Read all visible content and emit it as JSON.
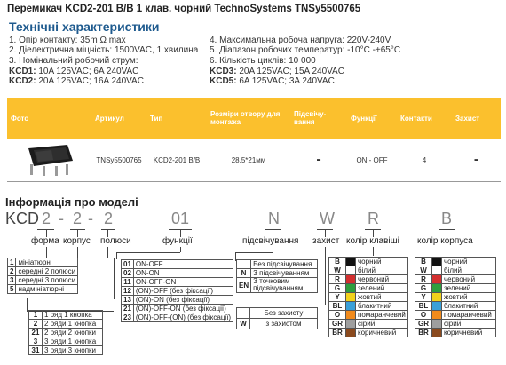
{
  "title": "Перемикач KCD2-201 B/B 1 клав. чорний TechnoSystems TNSy5500765",
  "specs": {
    "heading": "Технічні характеристики",
    "left": [
      "1. Опір контакту: 35m Ω  max",
      "2. Діелектрична міцність:  1500VAC, 1 хвилина",
      "3. Номінальний робочий струм:"
    ],
    "left_kcd": [
      {
        "k": "KCD1:",
        "v": " 10A 125VAC; 6A 240VAC"
      },
      {
        "k": "KCD2:",
        "v": " 20A 125VAC; 16A 240VAC"
      }
    ],
    "right": [
      "4. Максимальна робоча напруга: 220V-240V",
      "5. Діапазон робочих температур: -10°C -+65°C",
      "6. Кількість циклів: 10 000"
    ],
    "right_kcd": [
      {
        "k": "KCD3:",
        "v": " 20A 125VAC; 15A 240VAC"
      },
      {
        "k": "KCD5:",
        "v": " 6A 125VAC; 3A 240VAC"
      }
    ]
  },
  "table": {
    "headers": [
      "Фото",
      "Артикул",
      "Тип",
      "Розміри отвору для монтажа",
      "Підсвічу-вання",
      "Функції",
      "Контакти",
      "Захист"
    ],
    "row": [
      "",
      "TNSy5500765",
      "KCD2-201 B/B",
      "28,5*21мм",
      "-",
      "ON - OFF",
      "4",
      "-"
    ]
  },
  "info": {
    "heading": "Інформація про моделі",
    "code": {
      "prefix": "KCD",
      "form": "2",
      "body": "2",
      "poles": "2",
      "func": "01",
      "light": "N",
      "prot": "W",
      "key": "R",
      "case": "B"
    },
    "labels": {
      "form": "форма",
      "body": "корпус",
      "poles": "полюси",
      "func": "функції",
      "light": "підсвічування",
      "prot": "захист",
      "key": "колір клавіші",
      "case": "колір корпуса"
    },
    "forms": [
      {
        "k": "1",
        "v": "мініатюрні"
      },
      {
        "k": "2",
        "v": "середні 2 полюси"
      },
      {
        "k": "3",
        "v": "середні 3 полюси"
      },
      {
        "k": "5",
        "v": "надмініатюрні"
      }
    ],
    "poles": [
      {
        "k": "1",
        "v": "1 ряд 1 кнопка"
      },
      {
        "k": "2",
        "v": "2 ряди 1 кнопка"
      },
      {
        "k": "21",
        "v": "2 ряди 2 кнопки"
      },
      {
        "k": "3",
        "v": "3 ряди 1 кнопка"
      },
      {
        "k": "31",
        "v": "3 ряди 3 кнопки"
      }
    ],
    "functions": [
      {
        "k": "01",
        "v": "ON-OFF"
      },
      {
        "k": "02",
        "v": "ON-ON"
      },
      {
        "k": "11",
        "v": "ON-OFF-ON"
      },
      {
        "k": "12",
        "v": "(ON)-OFF (без фіксації)"
      },
      {
        "k": "13",
        "v": "(ON)-ON (без фіксації)"
      },
      {
        "k": "21",
        "v": "(ON)-OFF-ON (без фіксації)"
      },
      {
        "k": "23",
        "v": "(ON)-OFF-(ON) (без фіксації)"
      }
    ],
    "lights": [
      {
        "k": "",
        "v": "Без підсвічування"
      },
      {
        "k": "N",
        "v": "З підсвічуванням"
      },
      {
        "k": "EN",
        "v": "З точковим підсвічуванням"
      }
    ],
    "protection": [
      {
        "k": "",
        "v": "Без захисту"
      },
      {
        "k": "W",
        "v": "з захистом"
      }
    ],
    "colors": [
      {
        "k": "B",
        "v": "чорний",
        "c": "#111111"
      },
      {
        "k": "W",
        "v": "білий",
        "c": "#ffffff"
      },
      {
        "k": "R",
        "v": "червоний",
        "c": "#d32f2f"
      },
      {
        "k": "G",
        "v": "зелений",
        "c": "#2e9e3e"
      },
      {
        "k": "Y",
        "v": "жовтий",
        "c": "#f2d21b"
      },
      {
        "k": "BL",
        "v": "блакитний",
        "c": "#3aa0d8"
      },
      {
        "k": "O",
        "v": "помаранчевий",
        "c": "#f08a1c"
      },
      {
        "k": "GR",
        "v": "сірий",
        "c": "#9e9e9e"
      },
      {
        "k": "BR",
        "v": "коричневий",
        "c": "#8b4a1e"
      }
    ]
  }
}
